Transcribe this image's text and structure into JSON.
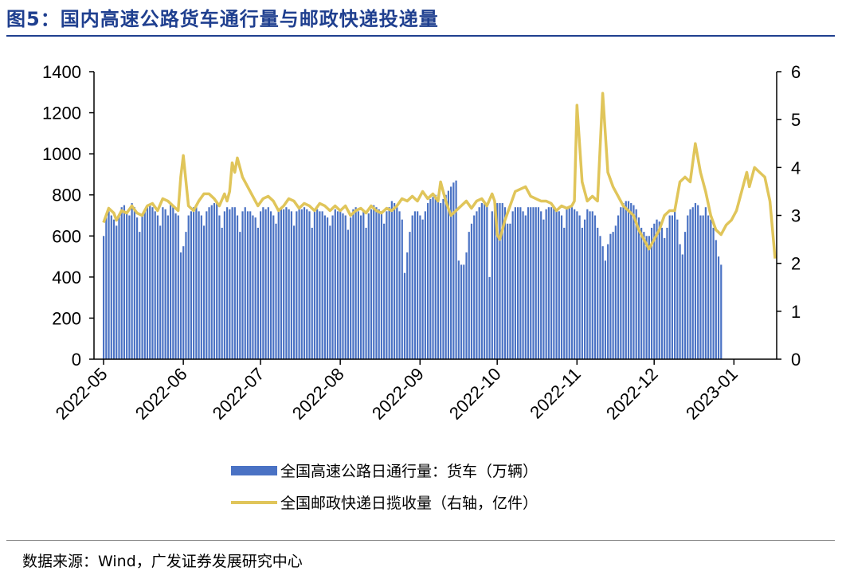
{
  "header": {
    "title": "图5：国内高速公路货车通行量与邮政快递投递量"
  },
  "footer": {
    "source": "数据来源：Wind，广发证券发展研究中心"
  },
  "chart_data": {
    "type": "bar+line",
    "legend_position": "bottom",
    "grid": false,
    "y_left": {
      "lim": [
        0,
        1400
      ],
      "ticks": [
        "0",
        "200",
        "400",
        "600",
        "800",
        "1000",
        "1200",
        "1400"
      ]
    },
    "y_right": {
      "lim": [
        0,
        6
      ],
      "ticks": [
        "0",
        "1",
        "2",
        "3",
        "4",
        "5",
        "6"
      ]
    },
    "x_ticks": [
      "2022-05",
      "2022-06",
      "2022-07",
      "2022-08",
      "2022-09",
      "2022-10",
      "2022-11",
      "2022-12",
      "2023-01"
    ],
    "x_range": [
      "2022-05-01",
      "2023-01-17"
    ],
    "series": [
      {
        "name": "全国高速公路日通行量：货车（万辆）",
        "type": "bar",
        "axis": "left",
        "color": "#4a72c4",
        "start_date": "2022-05-01",
        "values": [
          600,
          690,
          720,
          700,
          680,
          650,
          700,
          740,
          750,
          720,
          700,
          760,
          740,
          690,
          620,
          700,
          720,
          740,
          750,
          740,
          720,
          700,
          650,
          740,
          730,
          700,
          760,
          740,
          710,
          700,
          520,
          550,
          620,
          700,
          720,
          740,
          740,
          720,
          700,
          650,
          720,
          740,
          750,
          760,
          760,
          700,
          640,
          720,
          740,
          730,
          740,
          740,
          700,
          620,
          720,
          740,
          720,
          720,
          700,
          690,
          640,
          720,
          740,
          730,
          740,
          720,
          700,
          660,
          720,
          740,
          730,
          740,
          730,
          720,
          650,
          720,
          740,
          730,
          740,
          730,
          720,
          640,
          720,
          730,
          720,
          720,
          700,
          690,
          650,
          700,
          730,
          720,
          720,
          710,
          700,
          630,
          690,
          730,
          740,
          720,
          700,
          720,
          640,
          710,
          730,
          750,
          740,
          730,
          720,
          660,
          720,
          740,
          770,
          760,
          740,
          720,
          680,
          420,
          520,
          620,
          700,
          720,
          720,
          700,
          680,
          720,
          760,
          780,
          790,
          800,
          800,
          760,
          780,
          800,
          820,
          840,
          860,
          870,
          480,
          460,
          460,
          520,
          620,
          660,
          700,
          720,
          740,
          760,
          760,
          760,
          400,
          720,
          740,
          760,
          760,
          760,
          740,
          660,
          660,
          720,
          740,
          740,
          740,
          720,
          700,
          740,
          740,
          740,
          740,
          740,
          720,
          680,
          730,
          740,
          740,
          740,
          730,
          720,
          700,
          640,
          740,
          740,
          740,
          730,
          720,
          700,
          640,
          680,
          730,
          720,
          720,
          700,
          640,
          600,
          550,
          480,
          560,
          610,
          620,
          650,
          700,
          740,
          760,
          770,
          770,
          760,
          750,
          730,
          690,
          640,
          620,
          600,
          600,
          640,
          660,
          680,
          670,
          640,
          590,
          640,
          700,
          700,
          720,
          680,
          560,
          510,
          620,
          700,
          730,
          740,
          760,
          750,
          700,
          700,
          740,
          700,
          680,
          640,
          580,
          500,
          460
        ],
        "lines": [
          "600,690,720,700,680,650,700,740,750,720,700,760,740,690,620,700,720,740,750,740,720,700,650,740,730,700,760,740,710,700,520,550,620,700,720,740,740,720,700,650,720,740,750,760,760,700,640,720,740,730,740,740,700,620,720,740,720,720,700,690,640,720,740,730,740,720,700,660,720,740,730,740,730,720,650,720,740,730,740,730,720,640,720,730,720,720,700,690,650,700,730,720,720,710,700,630,690,730,740,720,700,720,640,710,730,750,740,730,720,660,720,740,770,760,740,720,680,420,520,620,700,720,720,700,680,720,760,780,790,800,800,760,780,800,820,840,860,870,480,460,460,520,620,660,700,720,740,760,760,760,400,720,740,760,760,760,740,660,660,720,740,740,740,720,700,740,740,740,740,740,720,680,730,740,740,740,730,720,700,640,740,740,740,730,720,700,640,680,730,720,720,700,640,600,550,480,560,610,620,650,700,740,760,770,770,760,750,730,690,640,620,600,600,640,660,680,670,640,590,640,700,700,720,680,560,510,620,700,730,740,760,750,700,700,740,700,680,640,580,500,460"
        ]
      },
      {
        "name": "全国邮政快递日揽收量（右轴，亿件）",
        "type": "line",
        "axis": "right",
        "color": "#e0c55a",
        "points": [
          [
            "2022-05-01",
            2.85
          ],
          [
            "2022-05-03",
            3.15
          ],
          [
            "2022-05-05",
            3.05
          ],
          [
            "2022-05-06",
            2.9
          ],
          [
            "2022-05-08",
            3.1
          ],
          [
            "2022-05-10",
            3.05
          ],
          [
            "2022-05-12",
            3.2
          ],
          [
            "2022-05-14",
            3.05
          ],
          [
            "2022-05-16",
            3.0
          ],
          [
            "2022-05-18",
            3.2
          ],
          [
            "2022-05-20",
            3.25
          ],
          [
            "2022-05-22",
            3.1
          ],
          [
            "2022-05-24",
            3.35
          ],
          [
            "2022-05-26",
            3.3
          ],
          [
            "2022-05-28",
            3.2
          ],
          [
            "2022-05-30",
            3.1
          ],
          [
            "2022-05-31",
            3.8
          ],
          [
            "2022-06-01",
            4.25
          ],
          [
            "2022-06-03",
            3.2
          ],
          [
            "2022-06-05",
            3.1
          ],
          [
            "2022-06-07",
            3.3
          ],
          [
            "2022-06-09",
            3.45
          ],
          [
            "2022-06-11",
            3.45
          ],
          [
            "2022-06-13",
            3.35
          ],
          [
            "2022-06-15",
            3.2
          ],
          [
            "2022-06-17",
            3.45
          ],
          [
            "2022-06-18",
            3.3
          ],
          [
            "2022-06-19",
            3.5
          ],
          [
            "2022-06-20",
            4.1
          ],
          [
            "2022-06-21",
            3.9
          ],
          [
            "2022-06-22",
            4.2
          ],
          [
            "2022-06-24",
            3.8
          ],
          [
            "2022-06-26",
            3.6
          ],
          [
            "2022-06-28",
            3.4
          ],
          [
            "2022-06-30",
            3.2
          ],
          [
            "2022-07-02",
            3.35
          ],
          [
            "2022-07-04",
            3.4
          ],
          [
            "2022-07-06",
            3.3
          ],
          [
            "2022-07-08",
            3.1
          ],
          [
            "2022-07-10",
            3.2
          ],
          [
            "2022-07-12",
            3.35
          ],
          [
            "2022-07-14",
            3.3
          ],
          [
            "2022-07-16",
            3.15
          ],
          [
            "2022-07-18",
            3.25
          ],
          [
            "2022-07-20",
            3.2
          ],
          [
            "2022-07-22",
            3.1
          ],
          [
            "2022-07-24",
            3.25
          ],
          [
            "2022-07-26",
            3.2
          ],
          [
            "2022-07-28",
            3.1
          ],
          [
            "2022-07-30",
            3.2
          ],
          [
            "2022-08-01",
            3.1
          ],
          [
            "2022-08-03",
            3.2
          ],
          [
            "2022-08-05",
            3.0
          ],
          [
            "2022-08-07",
            3.1
          ],
          [
            "2022-08-09",
            3.15
          ],
          [
            "2022-08-11",
            3.05
          ],
          [
            "2022-08-13",
            3.2
          ],
          [
            "2022-08-15",
            3.1
          ],
          [
            "2022-08-17",
            3.05
          ],
          [
            "2022-08-19",
            3.15
          ],
          [
            "2022-08-21",
            3.1
          ],
          [
            "2022-08-23",
            3.2
          ],
          [
            "2022-08-25",
            3.35
          ],
          [
            "2022-08-27",
            3.3
          ],
          [
            "2022-08-29",
            3.4
          ],
          [
            "2022-08-31",
            3.3
          ],
          [
            "2022-09-02",
            3.5
          ],
          [
            "2022-09-04",
            3.35
          ],
          [
            "2022-09-06",
            3.45
          ],
          [
            "2022-09-08",
            3.3
          ],
          [
            "2022-09-09",
            3.7
          ],
          [
            "2022-09-11",
            3.3
          ],
          [
            "2022-09-13",
            3.0
          ],
          [
            "2022-09-15",
            3.1
          ],
          [
            "2022-09-17",
            3.2
          ],
          [
            "2022-09-19",
            3.3
          ],
          [
            "2022-09-21",
            3.15
          ],
          [
            "2022-09-23",
            3.3
          ],
          [
            "2022-09-25",
            3.35
          ],
          [
            "2022-09-27",
            3.2
          ],
          [
            "2022-09-29",
            3.45
          ],
          [
            "2022-09-30",
            3.3
          ],
          [
            "2022-10-01",
            2.6
          ],
          [
            "2022-10-02",
            2.5
          ],
          [
            "2022-10-04",
            2.9
          ],
          [
            "2022-10-06",
            3.2
          ],
          [
            "2022-10-08",
            3.5
          ],
          [
            "2022-10-10",
            3.55
          ],
          [
            "2022-10-12",
            3.6
          ],
          [
            "2022-10-14",
            3.4
          ],
          [
            "2022-10-16",
            3.35
          ],
          [
            "2022-10-18",
            3.3
          ],
          [
            "2022-10-20",
            3.3
          ],
          [
            "2022-10-22",
            3.25
          ],
          [
            "2022-10-24",
            3.1
          ],
          [
            "2022-10-26",
            3.2
          ],
          [
            "2022-10-28",
            3.15
          ],
          [
            "2022-10-30",
            3.2
          ],
          [
            "2022-10-31",
            3.3
          ],
          [
            "2022-11-01",
            5.3
          ],
          [
            "2022-11-03",
            3.7
          ],
          [
            "2022-11-05",
            3.3
          ],
          [
            "2022-11-07",
            3.4
          ],
          [
            "2022-11-09",
            3.3
          ],
          [
            "2022-11-11",
            5.55
          ],
          [
            "2022-11-13",
            3.9
          ],
          [
            "2022-11-15",
            3.6
          ],
          [
            "2022-11-17",
            3.4
          ],
          [
            "2022-11-19",
            3.2
          ],
          [
            "2022-11-21",
            3.1
          ],
          [
            "2022-11-23",
            3.0
          ],
          [
            "2022-11-25",
            2.7
          ],
          [
            "2022-11-27",
            2.5
          ],
          [
            "2022-11-29",
            2.3
          ],
          [
            "2022-12-01",
            2.5
          ],
          [
            "2022-12-03",
            2.7
          ],
          [
            "2022-12-05",
            3.0
          ],
          [
            "2022-12-07",
            3.1
          ],
          [
            "2022-12-09",
            3.1
          ],
          [
            "2022-12-11",
            3.7
          ],
          [
            "2022-12-13",
            3.8
          ],
          [
            "2022-12-15",
            3.7
          ],
          [
            "2022-12-17",
            4.5
          ],
          [
            "2022-12-19",
            3.9
          ],
          [
            "2022-12-21",
            3.5
          ],
          [
            "2022-12-23",
            3.0
          ],
          [
            "2022-12-25",
            2.7
          ],
          [
            "2022-12-27",
            2.6
          ],
          [
            "2022-12-29",
            2.8
          ],
          [
            "2022-12-31",
            2.9
          ],
          [
            "2023-01-02",
            3.1
          ],
          [
            "2023-01-04",
            3.5
          ],
          [
            "2023-01-06",
            3.9
          ],
          [
            "2023-01-07",
            3.6
          ],
          [
            "2023-01-09",
            4.0
          ],
          [
            "2023-01-11",
            3.9
          ],
          [
            "2023-01-13",
            3.8
          ],
          [
            "2023-01-15",
            3.3
          ],
          [
            "2023-01-17",
            2.1
          ]
        ]
      }
    ]
  }
}
